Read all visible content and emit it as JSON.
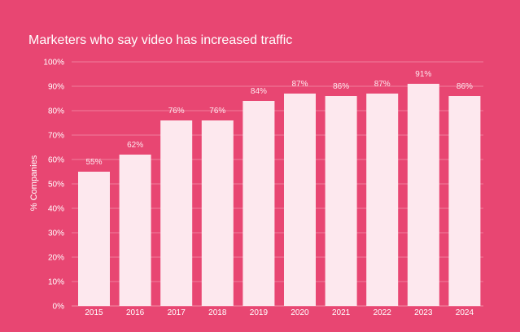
{
  "chart_data": {
    "type": "bar",
    "title": "Marketers who say video has increased traffic",
    "xlabel": "",
    "ylabel": "% Companies",
    "categories": [
      "2015",
      "2016",
      "2017",
      "2018",
      "2019",
      "2020",
      "2021",
      "2022",
      "2023",
      "2024"
    ],
    "values": [
      55,
      62,
      76,
      76,
      84,
      87,
      86,
      87,
      91,
      86
    ],
    "data_labels": [
      "55%",
      "62%",
      "76%",
      "76%",
      "84%",
      "87%",
      "86%",
      "87%",
      "91%",
      "86%"
    ],
    "ylim": [
      0,
      100
    ],
    "y_ticks": [
      "0%",
      "10%",
      "20%",
      "30%",
      "40%",
      "50%",
      "60%",
      "70%",
      "80%",
      "90%",
      "100%"
    ],
    "grid": true,
    "legend": "none",
    "colors": {
      "background": "#e84672",
      "bar": "#fde8ee",
      "gridline": "#f07f9c",
      "text": "#ffffff"
    }
  }
}
